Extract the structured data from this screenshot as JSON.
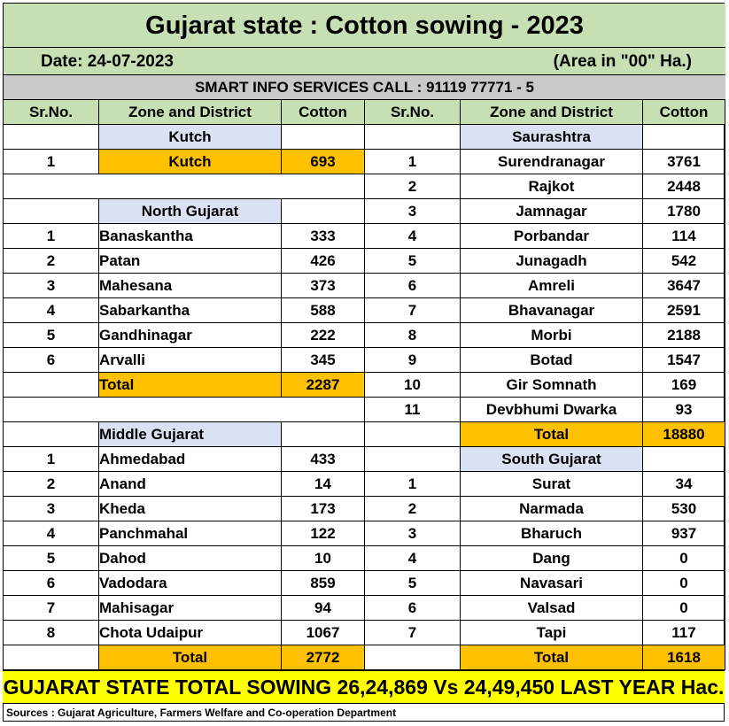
{
  "title": "Gujarat state : Cotton sowing - 2023",
  "date": "Date: 24-07-2023",
  "unit": "(Area in \"00\" Ha.)",
  "smart_info": "SMART INFO SERVICES CALL : 91119 77771 - 5",
  "headers": {
    "srno": "Sr.No.",
    "zone": "Zone and District",
    "cotton": "Cotton"
  },
  "kutch": {
    "zone": "Kutch",
    "rows": [
      {
        "sr": "1",
        "name": "Kutch",
        "value": "693"
      }
    ]
  },
  "north": {
    "zone": "North Gujarat",
    "rows": [
      {
        "sr": "1",
        "name": "Banaskantha",
        "value": "333"
      },
      {
        "sr": "2",
        "name": "Patan",
        "value": "426"
      },
      {
        "sr": "3",
        "name": "Mahesana",
        "value": "373"
      },
      {
        "sr": "4",
        "name": "Sabarkantha",
        "value": "588"
      },
      {
        "sr": "5",
        "name": "Gandhinagar",
        "value": "222"
      },
      {
        "sr": "6",
        "name": "Arvalli",
        "value": "345"
      }
    ],
    "total_label": "Total",
    "total": "2287"
  },
  "middle": {
    "zone": "Middle Gujarat",
    "rows": [
      {
        "sr": "1",
        "name": "Ahmedabad",
        "value": "433"
      },
      {
        "sr": "2",
        "name": "Anand",
        "value": "14"
      },
      {
        "sr": "3",
        "name": "Kheda",
        "value": "173"
      },
      {
        "sr": "4",
        "name": "Panchmahal",
        "value": "122"
      },
      {
        "sr": "5",
        "name": "Dahod",
        "value": "10"
      },
      {
        "sr": "6",
        "name": "Vadodara",
        "value": "859"
      },
      {
        "sr": "7",
        "name": "Mahisagar",
        "value": "94"
      },
      {
        "sr": "8",
        "name": "Chota Udaipur",
        "value": "1067"
      }
    ],
    "total_label": "Total",
    "total": "2772"
  },
  "saurashtra": {
    "zone": "Saurashtra",
    "rows": [
      {
        "sr": "1",
        "name": "Surendranagar",
        "value": "3761"
      },
      {
        "sr": "2",
        "name": "Rajkot",
        "value": "2448"
      },
      {
        "sr": "3",
        "name": "Jamnagar",
        "value": "1780"
      },
      {
        "sr": "4",
        "name": "Porbandar",
        "value": "114"
      },
      {
        "sr": "5",
        "name": "Junagadh",
        "value": "542"
      },
      {
        "sr": "6",
        "name": "Amreli",
        "value": "3647"
      },
      {
        "sr": "7",
        "name": "Bhavanagar",
        "value": "2591"
      },
      {
        "sr": "8",
        "name": "Morbi",
        "value": "2188"
      },
      {
        "sr": "9",
        "name": "Botad",
        "value": "1547"
      },
      {
        "sr": "10",
        "name": "Gir Somnath",
        "value": "169"
      },
      {
        "sr": "11",
        "name": "Devbhumi Dwarka",
        "value": "93"
      }
    ],
    "total_label": "Total",
    "total": "18880"
  },
  "south": {
    "zone": "South Gujarat",
    "rows": [
      {
        "sr": "1",
        "name": "Surat",
        "value": "34"
      },
      {
        "sr": "2",
        "name": "Narmada",
        "value": "530"
      },
      {
        "sr": "3",
        "name": "Bharuch",
        "value": "937"
      },
      {
        "sr": "4",
        "name": "Dang",
        "value": "0"
      },
      {
        "sr": "5",
        "name": "Navasari",
        "value": "0"
      },
      {
        "sr": "6",
        "name": "Valsad",
        "value": "0"
      },
      {
        "sr": "7",
        "name": "Tapi",
        "value": "117"
      }
    ],
    "total_label": "Total",
    "total": "1618"
  },
  "grand_total": "GUJARAT STATE TOTAL SOWING 26,24,869 Vs 24,49,450 LAST YEAR Hac.",
  "source": "Sources : Gujarat Agriculture, Farmers Welfare and Co-operation Department",
  "colors": {
    "header_green": "#c6e0b4",
    "zone_blue": "#d9e1f2",
    "total_orange": "#ffc000",
    "grand_yellow": "#ffff00",
    "smart_grey": "#c9c9c9"
  }
}
